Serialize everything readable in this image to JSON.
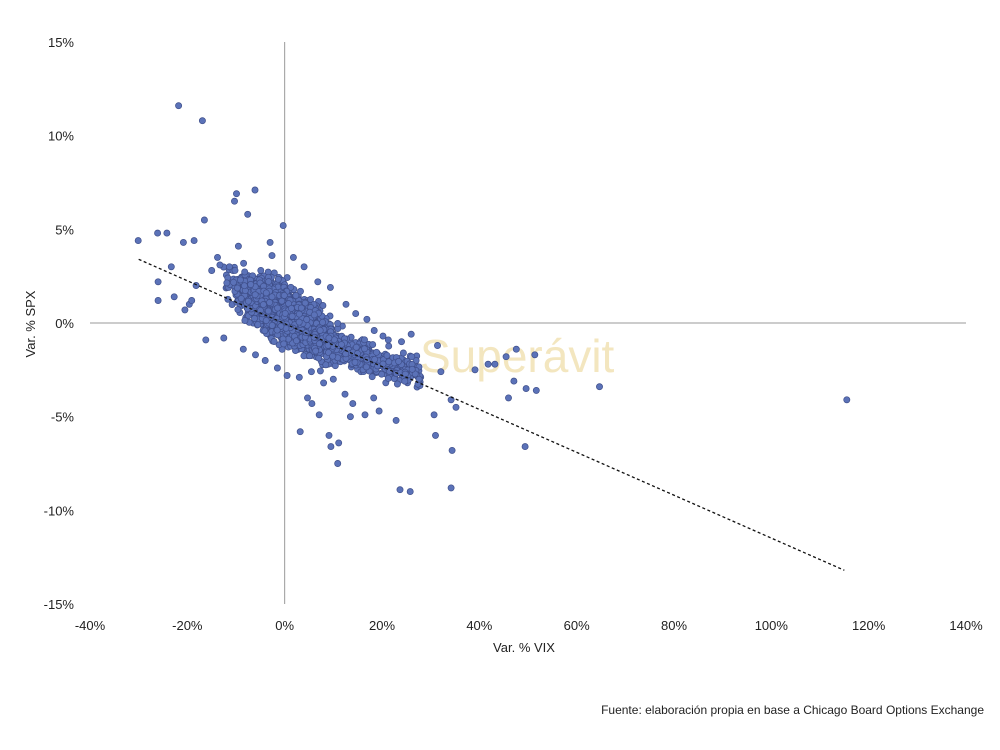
{
  "chart_data": {
    "type": "scatter",
    "title": "",
    "xlabel": "Var. % VIX",
    "ylabel": "Var. % SPX",
    "xlim": [
      -40,
      140
    ],
    "ylim": [
      -15,
      15
    ],
    "x_ticks": [
      "-40%",
      "-20%",
      "0%",
      "20%",
      "40%",
      "60%",
      "80%",
      "100%",
      "120%",
      "140%"
    ],
    "y_ticks": [
      "15%",
      "10%",
      "5%",
      "0%",
      "-5%",
      "-10%",
      "-15%"
    ],
    "x_tick_values": [
      -40,
      -20,
      0,
      20,
      40,
      60,
      80,
      100,
      120,
      140
    ],
    "y_tick_values": [
      15,
      10,
      5,
      0,
      -5,
      -10,
      -15
    ],
    "grid": false,
    "legend": "none",
    "trendline": {
      "style": "dashed",
      "x": [
        -30,
        115
      ],
      "y": [
        3.4,
        -13.2
      ]
    },
    "marker_color": "#5b72b8",
    "marker_edge_color": "#3f4f8a",
    "cluster": {
      "description_points": "dense cluster of daily observations",
      "center_x": [
        -10,
        2,
        12
      ],
      "center_y": [
        1.5,
        0.3,
        -1.5
      ]
    },
    "points": [
      [
        -21.8,
        11.6
      ],
      [
        -16.9,
        10.8
      ],
      [
        -30.1,
        4.4
      ],
      [
        -26.1,
        4.8
      ],
      [
        -24.2,
        4.8
      ],
      [
        -26.0,
        2.2
      ],
      [
        -26.0,
        1.2
      ],
      [
        -23.3,
        3.0
      ],
      [
        -20.8,
        4.3
      ],
      [
        -18.6,
        4.4
      ],
      [
        -16.5,
        5.5
      ],
      [
        -9.9,
        6.9
      ],
      [
        -10.3,
        6.5
      ],
      [
        -6.1,
        7.1
      ],
      [
        -0.3,
        5.2
      ],
      [
        -7.6,
        5.8
      ],
      [
        -13.3,
        3.1
      ],
      [
        -22.7,
        1.4
      ],
      [
        -19.6,
        1.0
      ],
      [
        -16.2,
        -0.9
      ],
      [
        3.2,
        -5.8
      ],
      [
        9.5,
        -6.6
      ],
      [
        11.1,
        -6.4
      ],
      [
        9.1,
        -6.0
      ],
      [
        10.9,
        -7.5
      ],
      [
        23.7,
        -8.9
      ],
      [
        25.8,
        -9.0
      ],
      [
        34.2,
        -8.8
      ],
      [
        31.0,
        -6.0
      ],
      [
        34.4,
        -6.8
      ],
      [
        35.2,
        -4.5
      ],
      [
        34.2,
        -4.1
      ],
      [
        30.7,
        -4.9
      ],
      [
        49.4,
        -6.6
      ],
      [
        46.0,
        -4.0
      ],
      [
        64.7,
        -3.4
      ],
      [
        51.7,
        -3.6
      ],
      [
        49.6,
        -3.5
      ],
      [
        47.1,
        -3.1
      ],
      [
        51.4,
        -1.7
      ],
      [
        43.2,
        -2.2
      ],
      [
        41.8,
        -2.2
      ],
      [
        39.1,
        -2.5
      ],
      [
        45.5,
        -1.8
      ],
      [
        47.6,
        -1.4
      ],
      [
        115.5,
        -4.1
      ],
      [
        31.4,
        -1.2
      ],
      [
        26.1,
        -1.8
      ],
      [
        24.4,
        -1.6
      ],
      [
        32.1,
        -2.6
      ],
      [
        22.9,
        -5.2
      ],
      [
        19.4,
        -4.7
      ],
      [
        18.3,
        -4.0
      ],
      [
        14.0,
        -4.3
      ],
      [
        16.5,
        -4.9
      ],
      [
        7.1,
        -4.9
      ],
      [
        5.6,
        -4.3
      ],
      [
        4.7,
        -4.0
      ],
      [
        13.5,
        -5.0
      ],
      [
        12.4,
        -3.8
      ],
      [
        26.0,
        -0.6
      ],
      [
        24.0,
        -1.0
      ],
      [
        21.3,
        -0.9
      ],
      [
        18.4,
        -0.4
      ],
      [
        20.2,
        -0.7
      ],
      [
        14.6,
        0.5
      ],
      [
        16.9,
        0.2
      ],
      [
        12.6,
        1.0
      ],
      [
        9.4,
        1.9
      ],
      [
        6.8,
        2.2
      ],
      [
        4.0,
        3.0
      ],
      [
        1.8,
        3.5
      ],
      [
        -3.0,
        4.3
      ],
      [
        -2.6,
        3.6
      ],
      [
        -9.5,
        4.1
      ],
      [
        -13.8,
        3.5
      ],
      [
        -15.0,
        2.8
      ],
      [
        -18.2,
        2.0
      ],
      [
        -19.1,
        1.2
      ],
      [
        -20.5,
        0.7
      ],
      [
        -12.5,
        -0.8
      ],
      [
        -8.5,
        -1.4
      ],
      [
        -6.0,
        -1.7
      ],
      [
        -4.0,
        -2.0
      ],
      [
        -1.5,
        -2.4
      ],
      [
        0.5,
        -2.8
      ],
      [
        3.0,
        -2.9
      ],
      [
        5.5,
        -2.6
      ],
      [
        8.0,
        -3.2
      ],
      [
        10.0,
        -3.0
      ]
    ]
  },
  "watermark": "Superávit",
  "source_note": "Fuente: elaboración propia en base a Chicago Board Options Exchange"
}
